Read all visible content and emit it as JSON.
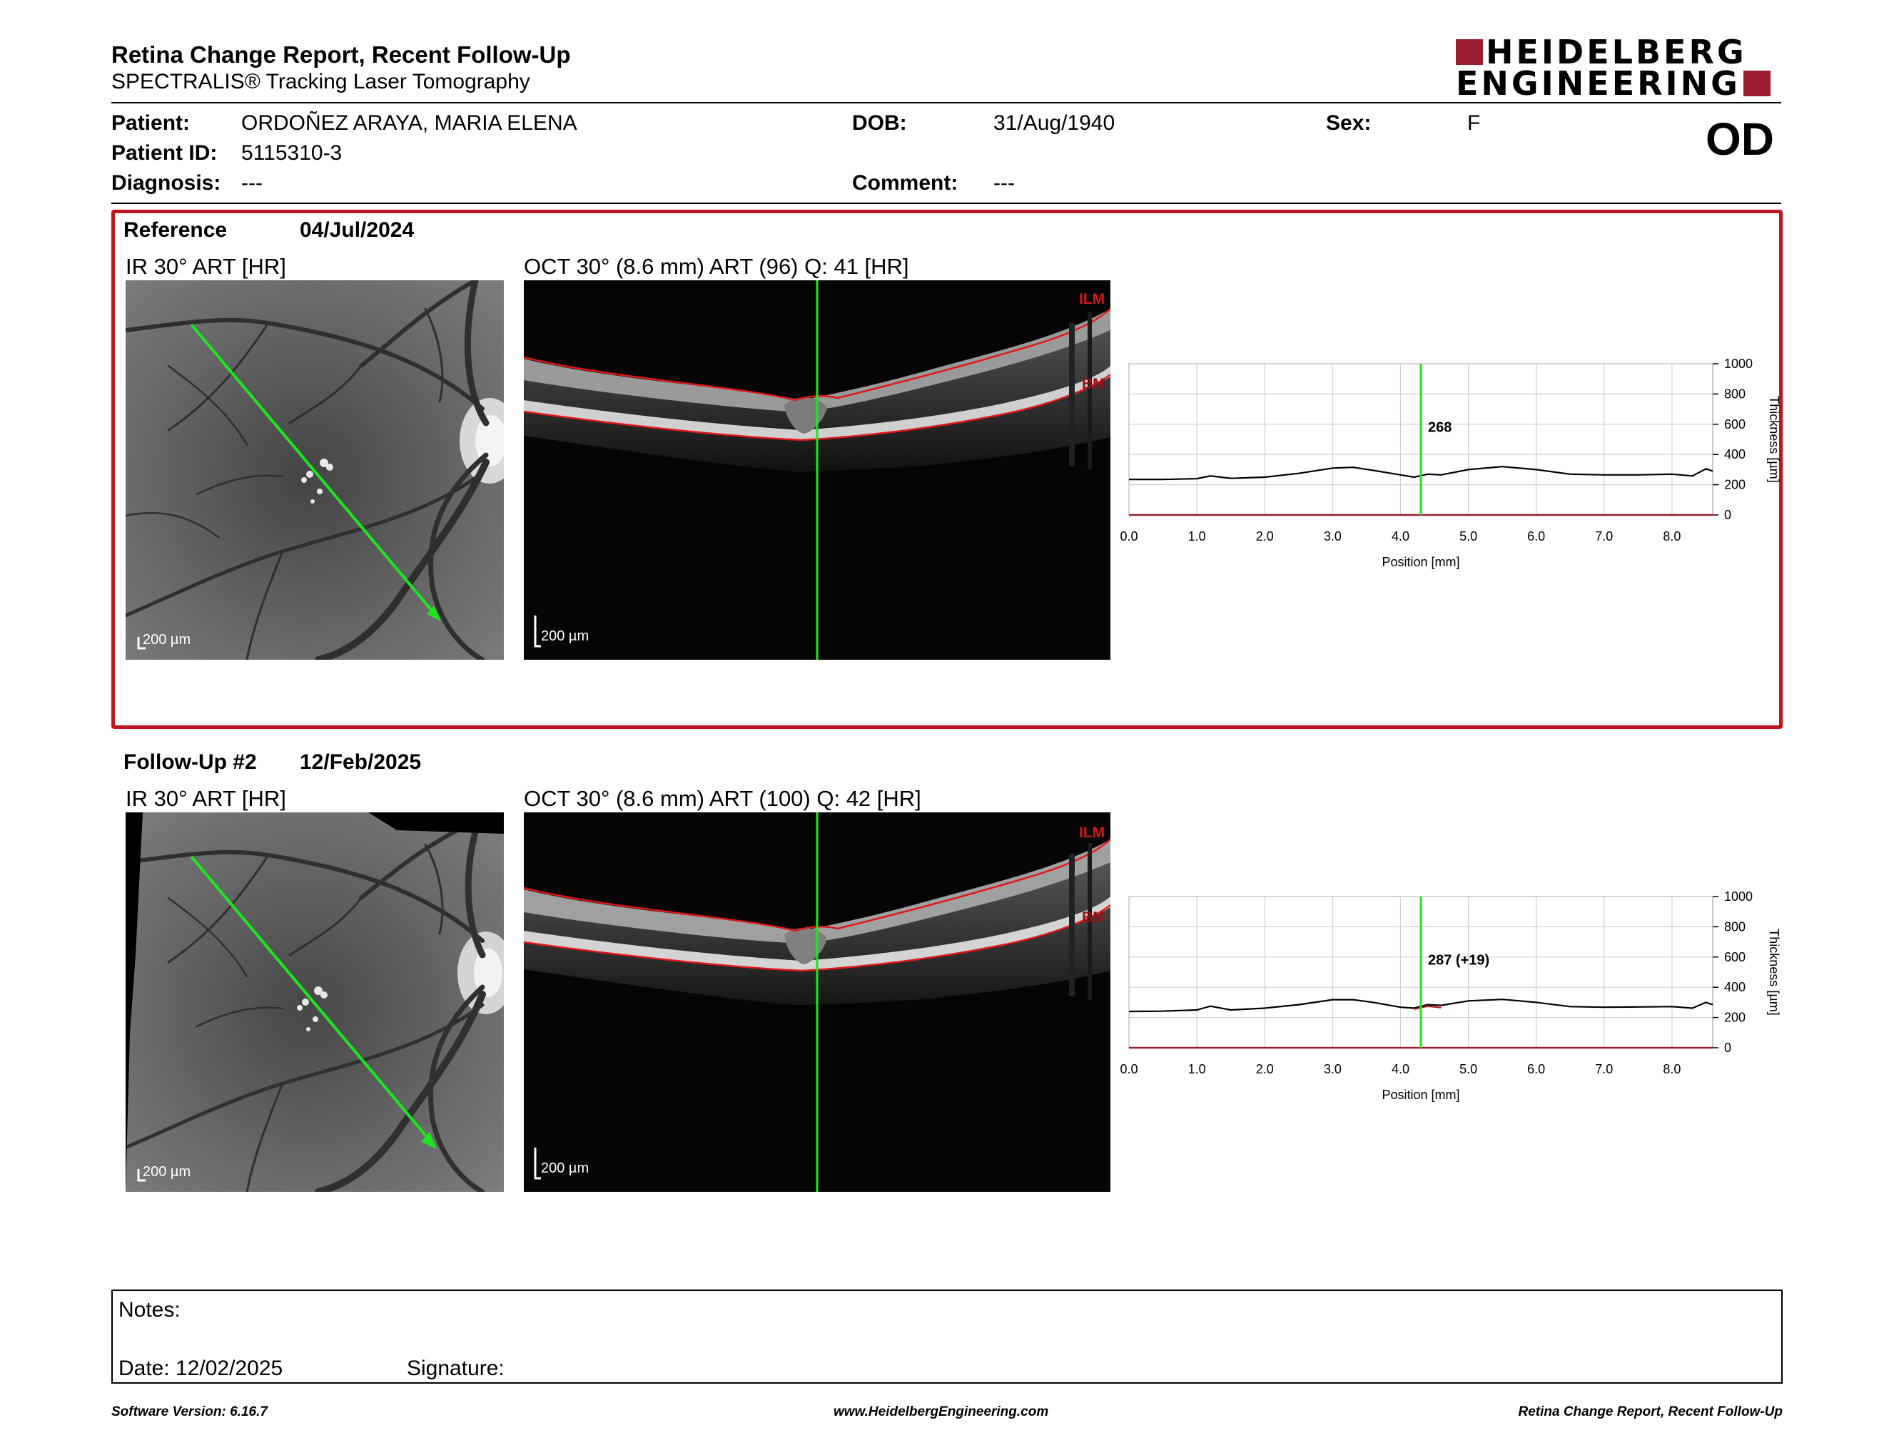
{
  "header": {
    "title": "Retina Change Report, Recent Follow-Up",
    "subtitle": "SPECTRALIS® Tracking Laser Tomography",
    "logo_line1": "HEIDELBERG",
    "logo_line2": "ENGINEERING",
    "eye": "OD"
  },
  "patient": {
    "name_label": "Patient:",
    "name": "ORDOÑEZ ARAYA, MARIA ELENA",
    "id_label": "Patient ID:",
    "id": "5115310-3",
    "diagnosis_label": "Diagnosis:",
    "diagnosis": "---",
    "dob_label": "DOB:",
    "dob": "31/Aug/1940",
    "comment_label": "Comment:",
    "comment": "---",
    "sex_label": "Sex:",
    "sex": "F"
  },
  "reference": {
    "label": "Reference",
    "date": "04/Jul/2024",
    "ir_label": "IR 30° ART [HR]",
    "oct_label": "OCT 30° (8.6 mm) ART (96) Q: 41 [HR]",
    "scale": "200 µm",
    "ilm": "ILM",
    "bm": "BM",
    "thickness_value": "268"
  },
  "followup": {
    "label": "Follow-Up #2",
    "date": "12/Feb/2025",
    "ir_label": "IR 30° ART [HR]",
    "oct_label": "OCT 30° (8.6 mm) ART (100) Q: 42 [HR]",
    "scale": "200 µm",
    "ilm": "ILM",
    "bm": "BM",
    "thickness_value": "287 (+19)"
  },
  "chart_data": [
    {
      "type": "line",
      "xlabel": "Position [mm]",
      "ylabel": "Thickness [µm]",
      "xlim": [
        0,
        8.6
      ],
      "ylim": [
        0,
        1000
      ],
      "xticks": [
        "0.0",
        "1.0",
        "2.0",
        "3.0",
        "4.0",
        "5.0",
        "6.0",
        "7.0",
        "8.0"
      ],
      "yticks": [
        "0",
        "200",
        "400",
        "600",
        "800",
        "1000"
      ],
      "grid": true,
      "marker_x": 4.3,
      "marker_label": "268",
      "series": [
        {
          "color": "#000000",
          "x": [
            0.0,
            0.5,
            1.0,
            1.2,
            1.5,
            2.0,
            2.5,
            3.0,
            3.3,
            3.6,
            4.0,
            4.2,
            4.4,
            4.6,
            5.0,
            5.5,
            6.0,
            6.5,
            7.0,
            7.5,
            8.0,
            8.3,
            8.5,
            8.6
          ],
          "values": [
            235,
            235,
            240,
            258,
            242,
            250,
            275,
            310,
            315,
            295,
            265,
            250,
            270,
            265,
            300,
            320,
            300,
            270,
            265,
            265,
            270,
            258,
            305,
            290
          ]
        }
      ]
    },
    {
      "type": "line",
      "xlabel": "Position [mm]",
      "ylabel": "Thickness [µm]",
      "xlim": [
        0,
        8.6
      ],
      "ylim": [
        0,
        1000
      ],
      "xticks": [
        "0.0",
        "1.0",
        "2.0",
        "3.0",
        "4.0",
        "5.0",
        "6.0",
        "7.0",
        "8.0"
      ],
      "yticks": [
        "0",
        "200",
        "400",
        "600",
        "800",
        "1000"
      ],
      "grid": true,
      "marker_x": 4.3,
      "marker_label": "287 (+19)",
      "series": [
        {
          "color": "#000000",
          "x": [
            0.0,
            0.5,
            1.0,
            1.2,
            1.5,
            2.0,
            2.5,
            3.0,
            3.3,
            3.6,
            4.0,
            4.2,
            4.4,
            4.6,
            5.0,
            5.5,
            6.0,
            6.5,
            7.0,
            7.5,
            8.0,
            8.3,
            8.5,
            8.6
          ],
          "values": [
            240,
            242,
            250,
            275,
            250,
            262,
            285,
            318,
            318,
            300,
            268,
            262,
            285,
            280,
            310,
            320,
            300,
            272,
            268,
            270,
            272,
            262,
            300,
            285
          ]
        },
        {
          "color": "#c0141e",
          "x": [
            4.2,
            4.4,
            4.6
          ],
          "values": [
            255,
            275,
            265
          ]
        }
      ]
    }
  ],
  "notes": {
    "label": "Notes:",
    "date_label": "Date: 12/02/2025",
    "signature_label": "Signature:"
  },
  "footer": {
    "left": "Software Version: 6.16.7",
    "center": "www.HeidelbergEngineering.com",
    "right": "Retina Change Report, Recent Follow-Up"
  }
}
